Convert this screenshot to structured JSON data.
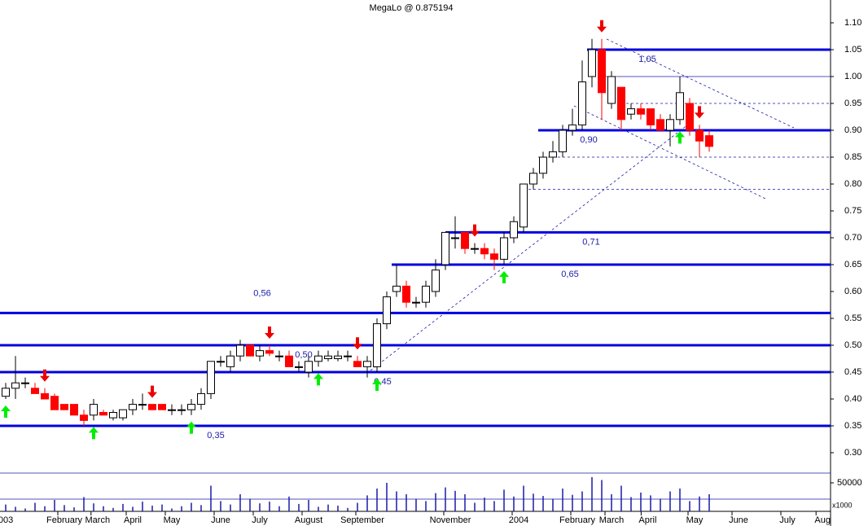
{
  "chart_data": {
    "type": "candlestick",
    "title": "MegaLo @ 0.875194",
    "candles": [
      [
        0.405,
        0.43,
        0.4,
        0.42
      ],
      [
        0.42,
        0.48,
        0.4,
        0.43
      ],
      [
        0.43,
        0.44,
        0.42,
        0.43
      ],
      [
        0.42,
        0.43,
        0.41,
        0.41
      ],
      [
        0.41,
        0.42,
        0.4,
        0.4
      ],
      [
        0.405,
        0.41,
        0.38,
        0.38
      ],
      [
        0.39,
        0.39,
        0.38,
        0.38
      ],
      [
        0.39,
        0.39,
        0.37,
        0.37
      ],
      [
        0.37,
        0.38,
        0.35,
        0.36
      ],
      [
        0.37,
        0.4,
        0.36,
        0.39
      ],
      [
        0.375,
        0.38,
        0.37,
        0.37
      ],
      [
        0.365,
        0.38,
        0.36,
        0.375
      ],
      [
        0.365,
        0.38,
        0.36,
        0.38
      ],
      [
        0.38,
        0.4,
        0.37,
        0.39
      ],
      [
        0.39,
        0.41,
        0.38,
        0.39
      ],
      [
        0.39,
        0.39,
        0.38,
        0.38
      ],
      [
        0.39,
        0.39,
        0.38,
        0.38
      ],
      [
        0.38,
        0.39,
        0.37,
        0.38
      ],
      [
        0.38,
        0.39,
        0.37,
        0.38
      ],
      [
        0.38,
        0.4,
        0.37,
        0.39
      ],
      [
        0.39,
        0.42,
        0.38,
        0.41
      ],
      [
        0.41,
        0.47,
        0.4,
        0.47
      ],
      [
        0.47,
        0.48,
        0.46,
        0.47
      ],
      [
        0.46,
        0.49,
        0.45,
        0.48
      ],
      [
        0.48,
        0.51,
        0.47,
        0.5
      ],
      [
        0.5,
        0.5,
        0.48,
        0.48
      ],
      [
        0.48,
        0.5,
        0.47,
        0.49
      ],
      [
        0.49,
        0.5,
        0.48,
        0.485
      ],
      [
        0.48,
        0.49,
        0.47,
        0.48
      ],
      [
        0.48,
        0.49,
        0.46,
        0.46
      ],
      [
        0.46,
        0.47,
        0.45,
        0.46
      ],
      [
        0.45,
        0.48,
        0.44,
        0.47
      ],
      [
        0.47,
        0.49,
        0.46,
        0.48
      ],
      [
        0.475,
        0.49,
        0.47,
        0.48
      ],
      [
        0.475,
        0.49,
        0.47,
        0.48
      ],
      [
        0.48,
        0.49,
        0.47,
        0.48
      ],
      [
        0.47,
        0.48,
        0.46,
        0.46
      ],
      [
        0.46,
        0.48,
        0.44,
        0.47
      ],
      [
        0.46,
        0.55,
        0.45,
        0.54
      ],
      [
        0.54,
        0.6,
        0.53,
        0.59
      ],
      [
        0.6,
        0.65,
        0.59,
        0.61
      ],
      [
        0.61,
        0.62,
        0.57,
        0.58
      ],
      [
        0.58,
        0.59,
        0.57,
        0.58
      ],
      [
        0.58,
        0.62,
        0.57,
        0.61
      ],
      [
        0.6,
        0.66,
        0.59,
        0.64
      ],
      [
        0.65,
        0.71,
        0.64,
        0.71
      ],
      [
        0.7,
        0.74,
        0.68,
        0.7
      ],
      [
        0.71,
        0.71,
        0.67,
        0.68
      ],
      [
        0.68,
        0.69,
        0.67,
        0.68
      ],
      [
        0.68,
        0.69,
        0.66,
        0.67
      ],
      [
        0.67,
        0.68,
        0.64,
        0.66
      ],
      [
        0.66,
        0.71,
        0.65,
        0.7
      ],
      [
        0.7,
        0.74,
        0.69,
        0.73
      ],
      [
        0.72,
        0.8,
        0.71,
        0.8
      ],
      [
        0.8,
        0.83,
        0.79,
        0.82
      ],
      [
        0.82,
        0.86,
        0.81,
        0.85
      ],
      [
        0.85,
        0.88,
        0.84,
        0.86
      ],
      [
        0.86,
        0.91,
        0.85,
        0.9
      ],
      [
        0.9,
        0.94,
        0.89,
        0.91
      ],
      [
        0.91,
        1.03,
        0.9,
        0.99
      ],
      [
        1.0,
        1.07,
        0.98,
        1.05
      ],
      [
        1.05,
        1.07,
        0.92,
        0.97
      ],
      [
        0.95,
        1.01,
        0.94,
        1.0
      ],
      [
        0.98,
        0.98,
        0.9,
        0.92
      ],
      [
        0.93,
        0.95,
        0.92,
        0.94
      ],
      [
        0.94,
        0.95,
        0.92,
        0.93
      ],
      [
        0.94,
        0.94,
        0.9,
        0.91
      ],
      [
        0.92,
        0.93,
        0.9,
        0.9
      ],
      [
        0.9,
        0.93,
        0.87,
        0.92
      ],
      [
        0.92,
        1.0,
        0.91,
        0.97
      ],
      [
        0.95,
        0.96,
        0.89,
        0.9
      ],
      [
        0.9,
        0.91,
        0.85,
        0.88
      ],
      [
        0.89,
        0.9,
        0.86,
        0.87
      ]
    ],
    "volume": [
      12000,
      8000,
      5000,
      15000,
      9000,
      20000,
      11000,
      7000,
      25000,
      14000,
      9000,
      6000,
      13000,
      8000,
      17000,
      10000,
      12000,
      5000,
      9000,
      15000,
      11000,
      45000,
      18000,
      12000,
      30000,
      22000,
      14000,
      17000,
      9000,
      26000,
      13000,
      20000,
      8000,
      12000,
      10000,
      6000,
      15000,
      28000,
      40000,
      50000,
      35000,
      30000,
      22000,
      18000,
      32000,
      42000,
      36000,
      30000,
      15000,
      24000,
      18000,
      38000,
      26000,
      45000,
      31000,
      27000,
      22000,
      40000,
      29000,
      35000,
      60000,
      55000,
      30000,
      45000,
      25000,
      33000,
      28000,
      22000,
      35000,
      40000,
      18000,
      26000,
      30000
    ],
    "vol_ylim": [
      0,
      90000
    ],
    "vol_yticks": [
      50000
    ],
    "vol_unit": "x1000",
    "ylim": [
      0.3,
      1.1
    ],
    "yticks": [
      {
        "value": 1.1,
        "label": "1.10"
      },
      {
        "value": 1.05,
        "label": "1.05"
      },
      {
        "value": 1.0,
        "label": "1.00"
      },
      {
        "value": 0.95,
        "label": "0.95"
      },
      {
        "value": 0.9,
        "label": "0.90"
      },
      {
        "value": 0.85,
        "label": "0.85"
      },
      {
        "value": 0.8,
        "label": "0.80"
      },
      {
        "value": 0.75,
        "label": "0.75"
      },
      {
        "value": 0.7,
        "label": "0.70"
      },
      {
        "value": 0.65,
        "label": "0.65"
      },
      {
        "value": 0.6,
        "label": "0.60"
      },
      {
        "value": 0.55,
        "label": "0.55"
      },
      {
        "value": 0.5,
        "label": "0.50"
      },
      {
        "value": 0.45,
        "label": "0.45"
      },
      {
        "value": 0.4,
        "label": "0.40"
      },
      {
        "value": 0.35,
        "label": "0.35"
      },
      {
        "value": 0.3,
        "label": "0.30"
      }
    ],
    "xticks": [
      {
        "value": 0,
        "label": "003"
      },
      {
        "value": 6,
        "label": "February"
      },
      {
        "value": 9.4,
        "label": "March"
      },
      {
        "value": 13,
        "label": "April"
      },
      {
        "value": 17,
        "label": "May"
      },
      {
        "value": 22,
        "label": "June"
      },
      {
        "value": 26,
        "label": "July"
      },
      {
        "value": 31,
        "label": "August"
      },
      {
        "value": 36.5,
        "label": "September"
      },
      {
        "value": 45.5,
        "label": "November"
      },
      {
        "value": 52.5,
        "label": "2004"
      },
      {
        "value": 58.5,
        "label": "February"
      },
      {
        "value": 62,
        "label": "March"
      },
      {
        "value": 65.7,
        "label": "April"
      },
      {
        "value": 70.5,
        "label": "May"
      },
      {
        "value": 75,
        "label": "June"
      },
      {
        "value": 80,
        "label": "July"
      },
      {
        "value": 83.6,
        "label": "Aug"
      }
    ],
    "levels": [
      {
        "value": 1.05,
        "label": "1,05",
        "start": 59.5
      },
      {
        "value": 0.9,
        "label": "0,90",
        "start": 54.5
      },
      {
        "value": 0.71,
        "label": "0,71",
        "start": 45
      },
      {
        "value": 0.65,
        "label": "0,65",
        "start": 39.5
      },
      {
        "value": 0.56,
        "label": "0,56",
        "start": -1
      },
      {
        "value": 0.5,
        "label": "0,50",
        "start": -1
      },
      {
        "value": 0.45,
        "label": "0,45",
        "start": -1
      },
      {
        "value": 0.35,
        "label": "0,35",
        "start": -1
      }
    ],
    "thin_levels": [
      {
        "value": 1.0,
        "start": 61
      },
      {
        "value": 0.95,
        "start": 63
      },
      {
        "value": 0.85,
        "start": 54.5
      },
      {
        "value": 0.79,
        "start": 53.5
      }
    ],
    "buy_signals": [
      0,
      9,
      19,
      32,
      38,
      51,
      69
    ],
    "sell_signals": [
      4,
      15,
      27,
      36,
      48,
      61,
      71
    ],
    "up_color": "#ffffff",
    "down_color": "#ff0000",
    "level_color": "#0000dd"
  }
}
